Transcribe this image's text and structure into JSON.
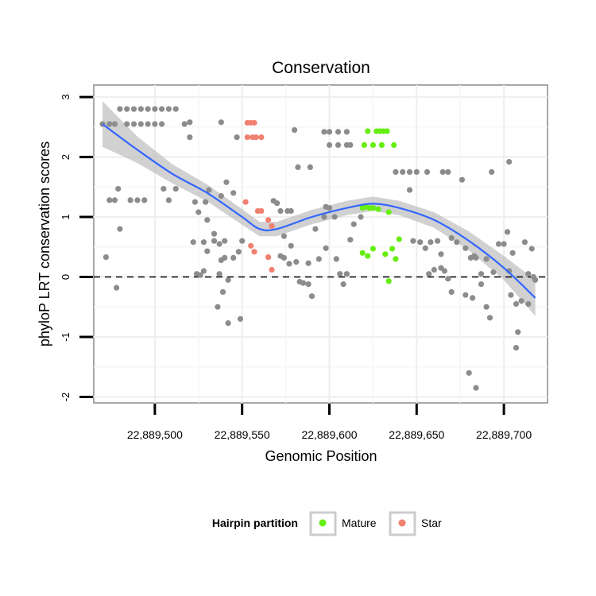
{
  "chart_data": {
    "type": "scatter",
    "title": "Conservation",
    "xlabel": "Genomic Position",
    "ylabel": "phyloP LRT conservation scores",
    "xlim": [
      22889465,
      22889725
    ],
    "ylim": [
      -2.1,
      3.2
    ],
    "x_ticks": [
      22889500,
      22889550,
      22889600,
      22889650,
      22889700
    ],
    "x_tick_labels": [
      "22,889,500",
      "22,889,550",
      "22,889,600",
      "22,889,650",
      "22,889,700"
    ],
    "y_ticks": [
      -2,
      -1,
      0,
      1,
      2,
      3
    ],
    "y_tick_labels": [
      "-2",
      "-1",
      "0",
      "1",
      "2",
      "3"
    ],
    "reference_line": {
      "y": 0,
      "style": "dashed"
    },
    "legend": {
      "title": "Hairpin partition",
      "position": "bottom",
      "entries": [
        {
          "label": "Mature",
          "color": "#66ee11"
        },
        {
          "label": "Star",
          "color": "#f08070"
        }
      ]
    },
    "colors": {
      "other": "#8c8c8c",
      "mature": "#66ee11",
      "star": "#f08070",
      "smooth": "#3366ff",
      "band": "#bdbdbd"
    },
    "smooth": {
      "x": [
        22889470,
        22889490,
        22889510,
        22889530,
        22889550,
        22889560,
        22889570,
        22889590,
        22889610,
        22889625,
        22889640,
        22889660,
        22889680,
        22889700,
        22889718
      ],
      "y": [
        2.55,
        2.12,
        1.72,
        1.4,
        1.0,
        0.8,
        0.8,
        1.0,
        1.15,
        1.22,
        1.15,
        0.95,
        0.6,
        0.15,
        -0.35
      ],
      "se": [
        0.38,
        0.22,
        0.16,
        0.14,
        0.13,
        0.12,
        0.12,
        0.12,
        0.12,
        0.12,
        0.12,
        0.13,
        0.16,
        0.2,
        0.3
      ]
    },
    "series": [
      {
        "name": "Mature",
        "points": [
          [
            22889620,
            2.2
          ],
          [
            22889622,
            2.43
          ],
          [
            22889625,
            2.2
          ],
          [
            22889627,
            2.43
          ],
          [
            22889629,
            2.43
          ],
          [
            22889631,
            2.43
          ],
          [
            22889633,
            2.43
          ],
          [
            22889630,
            2.2
          ],
          [
            22889637,
            2.2
          ],
          [
            22889619,
            1.15
          ],
          [
            22889621,
            1.17
          ],
          [
            22889623,
            1.15
          ],
          [
            22889625,
            1.15
          ],
          [
            22889628,
            1.13
          ],
          [
            22889634,
            1.08
          ],
          [
            22889619,
            0.4
          ],
          [
            22889622,
            0.35
          ],
          [
            22889625,
            0.47
          ],
          [
            22889632,
            0.38
          ],
          [
            22889636,
            0.47
          ],
          [
            22889638,
            0.3
          ],
          [
            22889640,
            0.63
          ],
          [
            22889634,
            -0.07
          ]
        ]
      },
      {
        "name": "Star",
        "points": [
          [
            22889553,
            2.57
          ],
          [
            22889555,
            2.57
          ],
          [
            22889557,
            2.57
          ],
          [
            22889553,
            2.33
          ],
          [
            22889556,
            2.33
          ],
          [
            22889558,
            2.33
          ],
          [
            22889561,
            2.33
          ],
          [
            22889559,
            1.1
          ],
          [
            22889561,
            1.1
          ],
          [
            22889565,
            0.95
          ],
          [
            22889567,
            0.85
          ],
          [
            22889552,
            1.25
          ],
          [
            22889555,
            0.52
          ],
          [
            22889557,
            0.42
          ],
          [
            22889565,
            0.33
          ],
          [
            22889567,
            0.12
          ]
        ]
      },
      {
        "name": "Other",
        "points": [
          [
            22889470,
            2.55
          ],
          [
            22889474,
            2.55
          ],
          [
            22889477,
            2.55
          ],
          [
            22889480,
            2.8
          ],
          [
            22889484,
            2.8
          ],
          [
            22889488,
            2.8
          ],
          [
            22889492,
            2.8
          ],
          [
            22889496,
            2.8
          ],
          [
            22889500,
            2.8
          ],
          [
            22889504,
            2.8
          ],
          [
            22889508,
            2.8
          ],
          [
            22889512,
            2.8
          ],
          [
            22889484,
            2.55
          ],
          [
            22889488,
            2.55
          ],
          [
            22889492,
            2.55
          ],
          [
            22889496,
            2.55
          ],
          [
            22889500,
            2.55
          ],
          [
            22889504,
            2.55
          ],
          [
            22889517,
            2.55
          ],
          [
            22889520,
            2.58
          ],
          [
            22889538,
            2.58
          ],
          [
            22889520,
            2.33
          ],
          [
            22889547,
            2.33
          ],
          [
            22889580,
            2.45
          ],
          [
            22889597,
            2.42
          ],
          [
            22889600,
            2.42
          ],
          [
            22889605,
            2.42
          ],
          [
            22889610,
            2.42
          ],
          [
            22889600,
            2.2
          ],
          [
            22889605,
            2.2
          ],
          [
            22889610,
            2.2
          ],
          [
            22889612,
            2.2
          ],
          [
            22889638,
            1.75
          ],
          [
            22889642,
            1.75
          ],
          [
            22889646,
            1.75
          ],
          [
            22889650,
            1.75
          ],
          [
            22889656,
            1.75
          ],
          [
            22889665,
            1.75
          ],
          [
            22889668,
            1.75
          ],
          [
            22889676,
            1.62
          ],
          [
            22889582,
            1.83
          ],
          [
            22889589,
            1.83
          ],
          [
            22889693,
            1.75
          ],
          [
            22889703,
            1.92
          ],
          [
            22889472,
            0.33
          ],
          [
            22889474,
            1.28
          ],
          [
            22889477,
            1.28
          ],
          [
            22889479,
            1.47
          ],
          [
            22889480,
            0.8
          ],
          [
            22889478,
            -0.18
          ],
          [
            22889486,
            1.28
          ],
          [
            22889490,
            1.28
          ],
          [
            22889494,
            1.28
          ],
          [
            22889505,
            1.47
          ],
          [
            22889508,
            1.28
          ],
          [
            22889512,
            1.47
          ],
          [
            22889523,
            1.25
          ],
          [
            22889525,
            1.08
          ],
          [
            22889529,
            1.25
          ],
          [
            22889531,
            1.45
          ],
          [
            22889538,
            1.35
          ],
          [
            22889541,
            1.58
          ],
          [
            22889545,
            1.4
          ],
          [
            22889530,
            0.95
          ],
          [
            22889534,
            0.72
          ],
          [
            22889528,
            0.58
          ],
          [
            22889534,
            0.6
          ],
          [
            22889537,
            0.55
          ],
          [
            22889540,
            0.6
          ],
          [
            22889522,
            0.58
          ],
          [
            22889524,
            0.05
          ],
          [
            22889526,
            0.03
          ],
          [
            22889528,
            0.1
          ],
          [
            22889530,
            0.43
          ],
          [
            22889537,
            0.05
          ],
          [
            22889538,
            0.28
          ],
          [
            22889540,
            0.32
          ],
          [
            22889542,
            -0.05
          ],
          [
            22889539,
            -0.25
          ],
          [
            22889536,
            -0.5
          ],
          [
            22889542,
            -0.77
          ],
          [
            22889549,
            -0.7
          ],
          [
            22889545,
            0.32
          ],
          [
            22889548,
            0.42
          ],
          [
            22889550,
            0.6
          ],
          [
            22889568,
            1.27
          ],
          [
            22889570,
            1.23
          ],
          [
            22889572,
            1.1
          ],
          [
            22889576,
            1.1
          ],
          [
            22889578,
            1.1
          ],
          [
            22889574,
            0.68
          ],
          [
            22889578,
            0.52
          ],
          [
            22889572,
            0.35
          ],
          [
            22889574,
            0.32
          ],
          [
            22889577,
            0.22
          ],
          [
            22889581,
            0.25
          ],
          [
            22889583,
            -0.08
          ],
          [
            22889585,
            -0.1
          ],
          [
            22889588,
            0.23
          ],
          [
            22889588,
            -0.12
          ],
          [
            22889590,
            -0.32
          ],
          [
            22889592,
            0.8
          ],
          [
            22889594,
            0.3
          ],
          [
            22889597,
            1.0
          ],
          [
            22889598,
            1.17
          ],
          [
            22889600,
            1.15
          ],
          [
            22889603,
            1.0
          ],
          [
            22889598,
            0.48
          ],
          [
            22889604,
            0.3
          ],
          [
            22889606,
            0.05
          ],
          [
            22889608,
            -0.12
          ],
          [
            22889610,
            0.05
          ],
          [
            22889612,
            0.62
          ],
          [
            22889614,
            0.88
          ],
          [
            22889618,
            1.0
          ],
          [
            22889646,
            1.45
          ],
          [
            22889648,
            0.6
          ],
          [
            22889652,
            0.58
          ],
          [
            22889655,
            0.48
          ],
          [
            22889658,
            0.58
          ],
          [
            22889662,
            0.6
          ],
          [
            22889664,
            0.38
          ],
          [
            22889657,
            0.05
          ],
          [
            22889660,
            0.12
          ],
          [
            22889664,
            0.15
          ],
          [
            22889666,
            0.1
          ],
          [
            22889668,
            -0.03
          ],
          [
            22889670,
            0.65
          ],
          [
            22889673,
            0.58
          ],
          [
            22889678,
            0.48
          ],
          [
            22889681,
            0.32
          ],
          [
            22889684,
            0.32
          ],
          [
            22889690,
            0.3
          ],
          [
            22889683,
            0.35
          ],
          [
            22889670,
            -0.25
          ],
          [
            22889678,
            -0.3
          ],
          [
            22889682,
            -0.35
          ],
          [
            22889687,
            -0.12
          ],
          [
            22889690,
            -0.5
          ],
          [
            22889692,
            -0.68
          ],
          [
            22889687,
            0.05
          ],
          [
            22889694,
            0.08
          ],
          [
            22889697,
            0.55
          ],
          [
            22889700,
            0.55
          ],
          [
            22889702,
            0.75
          ],
          [
            22889705,
            0.4
          ],
          [
            22889703,
            0.1
          ],
          [
            22889704,
            -0.3
          ],
          [
            22889707,
            -0.45
          ],
          [
            22889708,
            -0.92
          ],
          [
            22889707,
            -1.18
          ],
          [
            22889710,
            -0.4
          ],
          [
            22889712,
            0.58
          ],
          [
            22889714,
            0.05
          ],
          [
            22889716,
            0.47
          ],
          [
            22889717,
            0.0
          ],
          [
            22889718,
            -0.05
          ],
          [
            22889714,
            -0.45
          ],
          [
            22889680,
            -1.6
          ],
          [
            22889684,
            -1.85
          ]
        ]
      }
    ]
  }
}
